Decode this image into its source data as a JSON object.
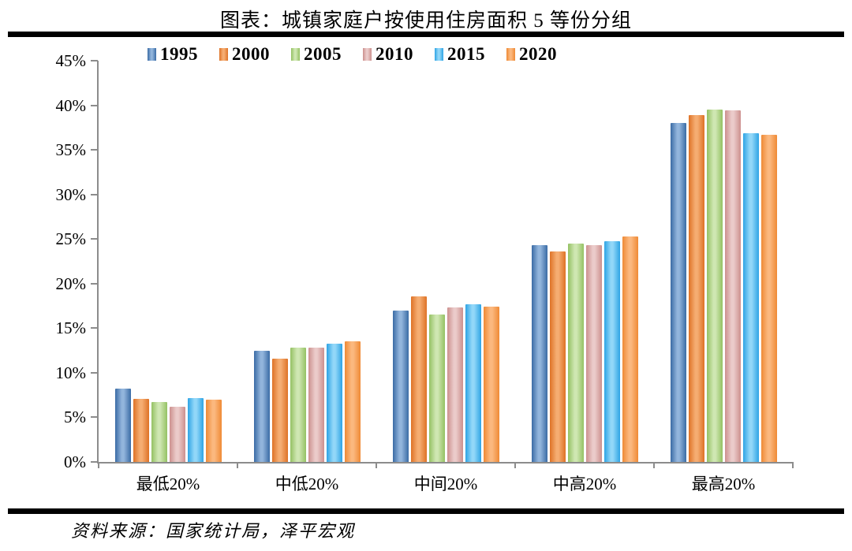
{
  "title": "图表：城镇家庭户按使用住房面积 5 等份分组",
  "source": "资料来源：国家统计局，泽平宏观",
  "axis_color": "#8C8C8C",
  "rule_color": "#000000",
  "chart_data": {
    "type": "bar",
    "title": "图表：城镇家庭户按使用住房面积 5 等份分组",
    "xlabel": "",
    "ylabel": "",
    "ylim": [
      0,
      45
    ],
    "y_ticks": [
      "0%",
      "5%",
      "10%",
      "15%",
      "20%",
      "25%",
      "30%",
      "35%",
      "40%",
      "45%"
    ],
    "grid": false,
    "legend_position": "top",
    "categories": [
      "最低20%",
      "中低20%",
      "中间20%",
      "中高20%",
      "最高20%"
    ],
    "series": [
      {
        "name": "1995",
        "color": "#3A6BA5",
        "color_light": "#92B5DC",
        "values": [
          8.2,
          12.5,
          17.0,
          24.3,
          38.0
        ]
      },
      {
        "name": "2000",
        "color": "#DE7226",
        "color_light": "#F5AD72",
        "values": [
          7.1,
          11.6,
          18.6,
          23.6,
          38.9
        ]
      },
      {
        "name": "2005",
        "color": "#94C163",
        "color_light": "#CFE7B2",
        "values": [
          6.7,
          12.8,
          16.5,
          24.5,
          39.5
        ]
      },
      {
        "name": "2010",
        "color": "#CC908E",
        "color_light": "#EBCBCA",
        "values": [
          6.2,
          12.8,
          17.3,
          24.3,
          39.4
        ]
      },
      {
        "name": "2015",
        "color": "#2EA4E5",
        "color_light": "#92D7F8",
        "values": [
          7.2,
          13.3,
          17.7,
          24.8,
          36.9
        ]
      },
      {
        "name": "2020",
        "color": "#EF8A35",
        "color_light": "#FBB87F",
        "values": [
          7.0,
          13.5,
          17.4,
          25.3,
          36.7
        ]
      }
    ]
  }
}
